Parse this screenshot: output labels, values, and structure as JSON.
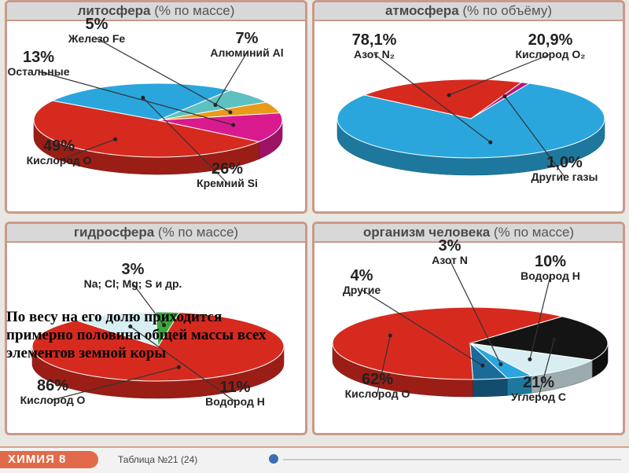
{
  "charts": [
    {
      "id": "litho",
      "title": "литосфера",
      "unit": "(% по массе)",
      "chart_data": {
        "type": "pie",
        "slices": [
          {
            "pct": "49%",
            "name": "Кислород O",
            "value": 49,
            "color": "#d62a1f"
          },
          {
            "pct": "26%",
            "name": "Кремний Si",
            "value": 26,
            "color": "#2aa6dc"
          },
          {
            "pct": "7%",
            "name": "Алюминий Al",
            "value": 7,
            "color": "#5fc0c0"
          },
          {
            "pct": "5%",
            "name": "Железо Fe",
            "value": 5,
            "color": "#e99a18"
          },
          {
            "pct": "13%",
            "name": "Остальные",
            "value": 13,
            "color": "#d91a8e"
          }
        ]
      }
    },
    {
      "id": "atmo",
      "title": "атмосфера",
      "unit": "(% по объёму)",
      "chart_data": {
        "type": "pie",
        "slices": [
          {
            "pct": "78,1%",
            "name": "Азот N₂",
            "value": 78.1,
            "color": "#2aa6dc"
          },
          {
            "pct": "20,9%",
            "name": "Кислород O₂",
            "value": 20.9,
            "color": "#d62a1f"
          },
          {
            "pct": "1,0%",
            "name": "Другие газы",
            "value": 1.0,
            "color": "#b0187a"
          }
        ]
      }
    },
    {
      "id": "hydro",
      "title": "гидросфера",
      "unit": "(% по массе)",
      "chart_data": {
        "type": "pie",
        "slices": [
          {
            "pct": "86%",
            "name": "Кислород O",
            "value": 86,
            "color": "#d62a1f"
          },
          {
            "pct": "11%",
            "name": "Водород H",
            "value": 11,
            "color": "#d8eef2"
          },
          {
            "pct": "3%",
            "name": "Na; Cl; Mg; S и др.",
            "value": 3,
            "color": "#3aa83a"
          }
        ]
      }
    },
    {
      "id": "human",
      "title": "организм человека",
      "unit": "(% по массе)",
      "chart_data": {
        "type": "pie",
        "slices": [
          {
            "pct": "62%",
            "name": "Кислород O",
            "value": 62,
            "color": "#d62a1f"
          },
          {
            "pct": "21%",
            "name": "Углерод C",
            "value": 21,
            "color": "#141414"
          },
          {
            "pct": "10%",
            "name": "Водород H",
            "value": 10,
            "color": "#d8eef2"
          },
          {
            "pct": "3%",
            "name": "Азот N",
            "value": 3,
            "color": "#2aa6dc"
          },
          {
            "pct": "4%",
            "name": "Другие",
            "value": 4,
            "color": "#1a6b99"
          }
        ]
      }
    }
  ],
  "overlay": {
    "text": "По весу на его долю приходится примерно половина общей массы всех элементов земной коры"
  },
  "footer": {
    "badge": "ХИМИЯ 8",
    "table": "Таблица №21 (24)"
  }
}
